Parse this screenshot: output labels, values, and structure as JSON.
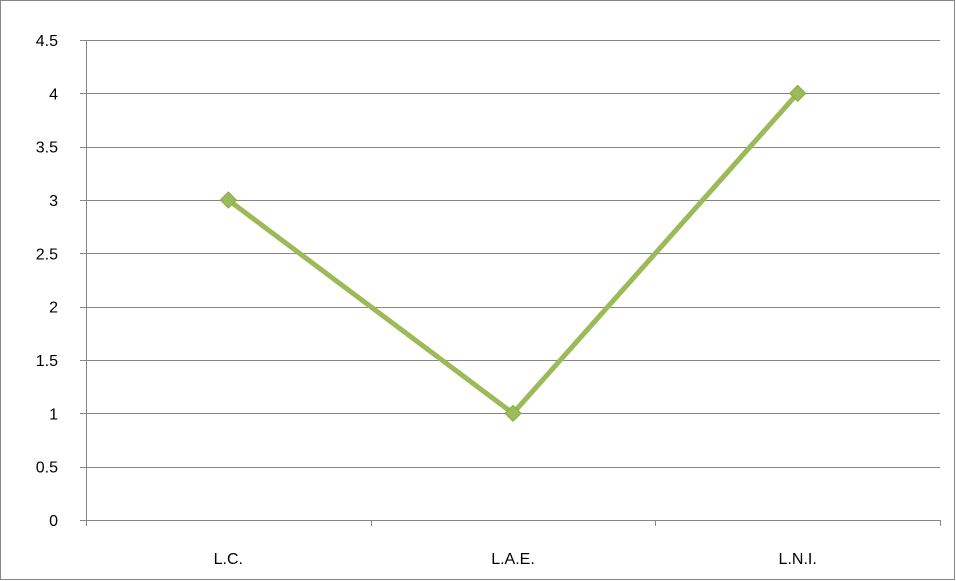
{
  "chart_data": {
    "type": "line",
    "categories": [
      "L.C.",
      "L.A.E.",
      "L.N.I."
    ],
    "series": [
      {
        "values": [
          3,
          1,
          4
        ],
        "color": "#9BBB59",
        "marker": "diamond"
      }
    ],
    "title": "",
    "xlabel": "",
    "ylabel": "",
    "ylim": [
      0,
      4.5
    ],
    "yticks": [
      "0",
      "0.5",
      "1",
      "1.5",
      "2",
      "2.5",
      "3",
      "3.5",
      "4",
      "4.5"
    ],
    "grid": true,
    "legend": "none"
  }
}
